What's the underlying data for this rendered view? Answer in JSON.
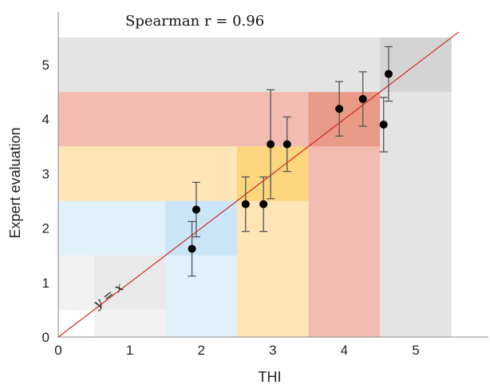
{
  "chart_data": {
    "type": "scatter",
    "title": "",
    "annotation": "Spearman r = 0.96",
    "xlabel": "THI",
    "ylabel": "Expert evaluation",
    "xlim": [
      0,
      6
    ],
    "ylim": [
      0,
      5.6
    ],
    "xticks": [
      "0",
      "1",
      "2",
      "3",
      "4",
      "5"
    ],
    "yticks": [
      "0",
      "1",
      "2",
      "3",
      "4",
      "5"
    ],
    "grid": false,
    "legend": "none",
    "reference_line": {
      "label": "y = x",
      "color": "#d62728"
    },
    "points": [
      {
        "x": 1.87,
        "y": 1.62,
        "err": 0.5
      },
      {
        "x": 1.93,
        "y": 2.34,
        "err": 0.5
      },
      {
        "x": 2.62,
        "y": 2.44,
        "err": 0.5
      },
      {
        "x": 2.87,
        "y": 2.44,
        "err": 0.5
      },
      {
        "x": 2.97,
        "y": 3.54,
        "err": 1.0
      },
      {
        "x": 3.2,
        "y": 3.54,
        "err": 0.5
      },
      {
        "x": 3.93,
        "y": 4.19,
        "err": 0.5
      },
      {
        "x": 4.26,
        "y": 4.37,
        "err": 0.5
      },
      {
        "x": 4.55,
        "y": 3.9,
        "err": 0.5
      },
      {
        "x": 4.62,
        "y": 4.83,
        "err": 0.5
      }
    ],
    "bands": [
      {
        "level": 1,
        "color": "#f2f2f2",
        "diag_color": "#e9e9e9"
      },
      {
        "level": 2,
        "color": "#e1f1fa",
        "diag_color": "#c9e5f6"
      },
      {
        "level": 3,
        "color": "#fde5b5",
        "diag_color": "#fcd67d"
      },
      {
        "level": 4,
        "color": "#f2bcb1",
        "diag_color": "#e99a87"
      },
      {
        "level": 5,
        "color": "#e4e4e4",
        "diag_color": "#d4d4d4"
      }
    ],
    "marker_color": "#000000",
    "errorbar_color": "#555555"
  }
}
